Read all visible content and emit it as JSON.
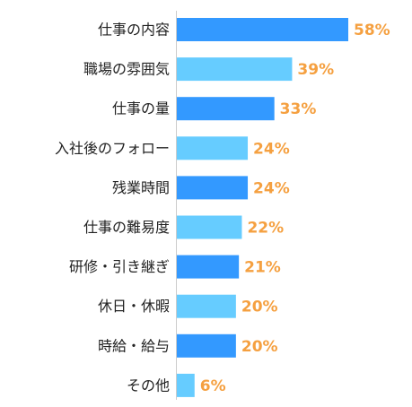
{
  "chart_data": {
    "type": "bar",
    "orientation": "horizontal",
    "categories": [
      "仕事の内容",
      "職場の雰囲気",
      "仕事の量",
      "入社後のフォロー",
      "残業時間",
      "仕事の難易度",
      "研修・引き継ぎ",
      "休日・休暇",
      "時給・給与",
      "その他"
    ],
    "values": [
      58,
      39,
      33,
      24,
      24,
      22,
      21,
      20,
      20,
      6
    ],
    "value_labels": [
      "58%",
      "39%",
      "33%",
      "24%",
      "24%",
      "22%",
      "21%",
      "20%",
      "20%",
      "6%"
    ],
    "bar_colors": [
      "#3399ff",
      "#66ccff",
      "#3399ff",
      "#66ccff",
      "#3399ff",
      "#66ccff",
      "#3399ff",
      "#66ccff",
      "#3399ff",
      "#66ccff"
    ],
    "label_color": "#f5a040",
    "axis_color": "#cccccc",
    "xlim": [
      0,
      100
    ],
    "grid": false,
    "legend": "none"
  }
}
